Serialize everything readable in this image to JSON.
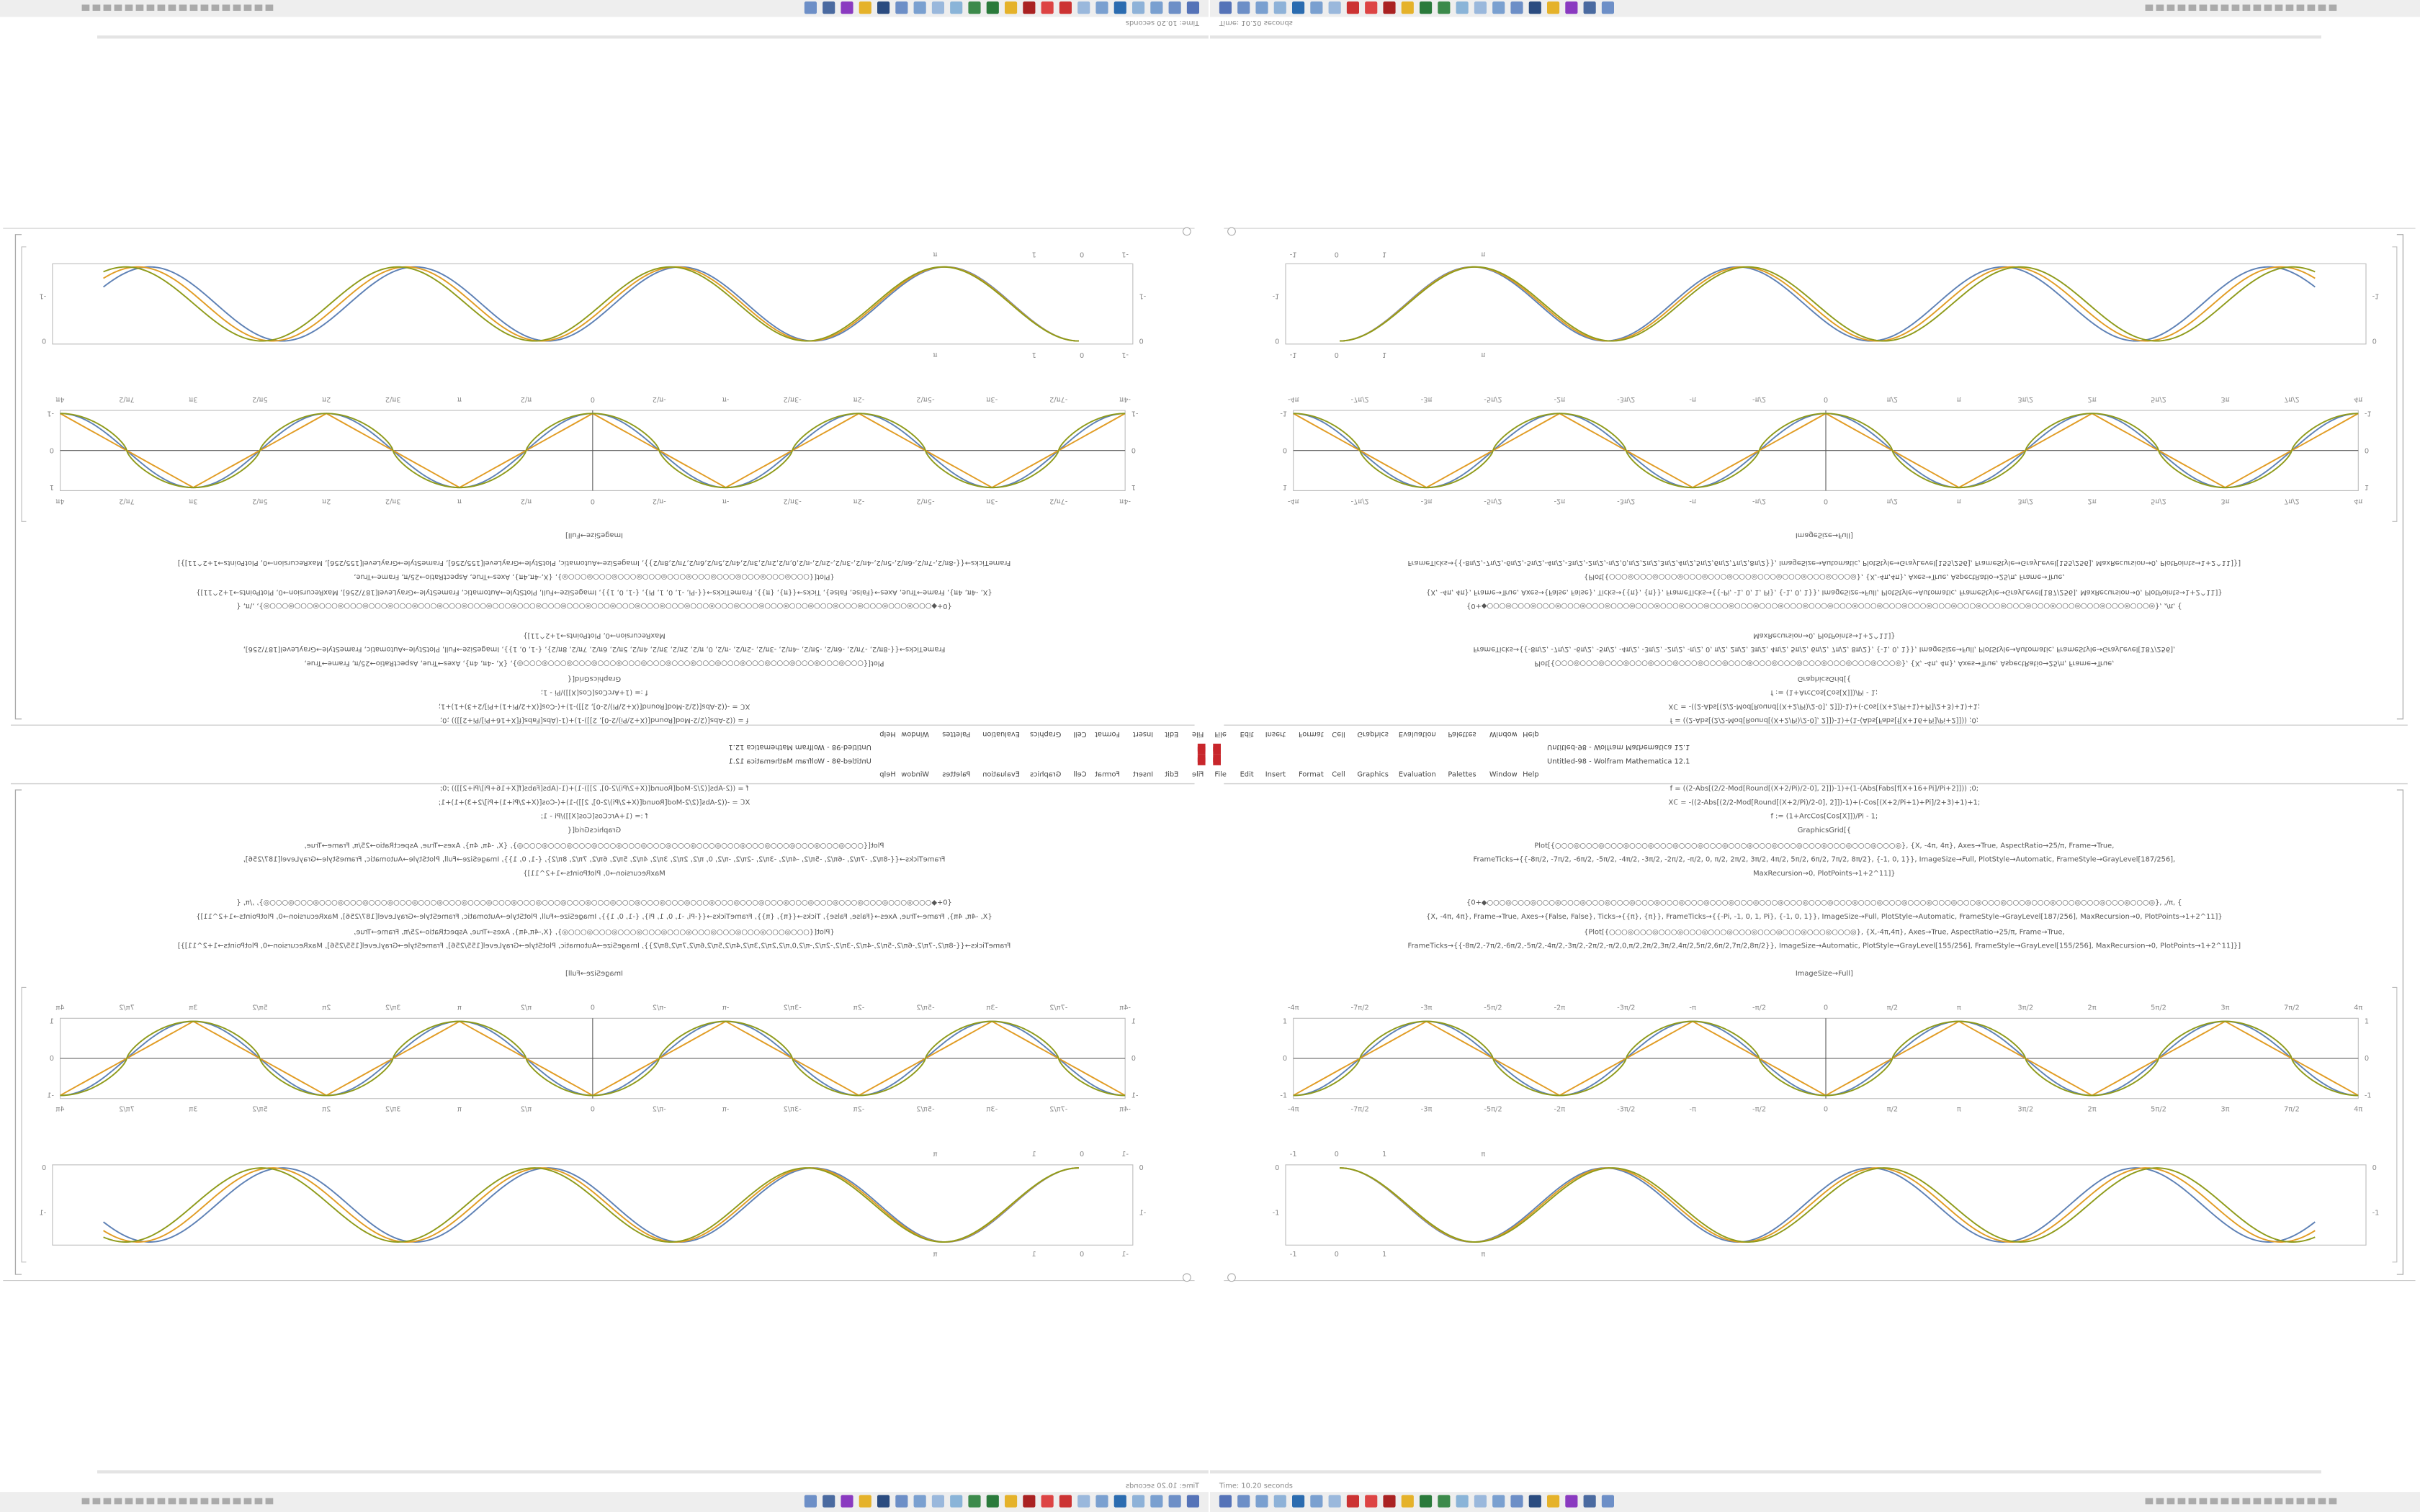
{
  "window_title": "Untitled-98 - Wolfram Mathematica 12.1",
  "menu": [
    "File",
    "Edit",
    "Insert",
    "Format",
    "Cell",
    "Graphics",
    "Evaluation",
    "Palettes",
    "Window",
    "Help"
  ],
  "status": "Time: 10.20 seconds",
  "code_lines": [
    "f = ((2-Abs[(2/2-Mod[Round[(X+2/Pi)/2-0], 2]])-1)+(1-(Abs[Fabs[f[X+16+Pi]/Pi+2]])) ;0;",
    "Xℂ = -((2-Abs[(2/2-Mod[Round[(X+2/Pi)/2-0], 2]])-1)+(-Cos[(X+2/Pi+1)+Pi]/2+3)+1)+1;",
    "f := (1+ArcCos[Cos[X]])/Pi - 1;",
    "GraphicsGrid[{",
    "Plot[{○○○◎○○○◎○○○◎○○○◎○○○◎○○○◎○○○◎○○○◎○○○◎○○○◎○○○◎○○○◎○○○◎○○○◎}, {X, -4π, 4π}, Axes→True, AspectRatio→25/π, Frame→True,",
    "FrameTicks→{{-8π/2, -7π/2, -6π/2, -5π/2, -4π/2, -3π/2, -2π/2, -π/2, 0, π/2, 2π/2, 3π/2, 4π/2, 5π/2, 6π/2, 7π/2, 8π/2}, {-1, 0, 1}}, ImageSize→Full, PlotStyle→Automatic, FrameStyle→GrayLevel[187/256],",
    "MaxRecursion→0, PlotPoints→1+2^11]}",
    "{0+◆○○○◎○○○◎○○○◎○○○◎○○○◎○○○◎○○○◎○○○◎○○○◎○○○◎○○○◎○○○◎○○○◎○○○◎○○○◎○○○◎○○○◎○○○◎○○○◎○○○◎○○○◎○○○◎○○○◎○○○◎○○○◎○○○◎○○○◎}, ,/π, {",
    "{X, -4π, 4π}, Frame→True, Axes→{False, False}, Ticks→{{π}, {π}}, FrameTicks→{{-Pi, -1, 0, 1, Pi}, {-1, 0, 1}}, ImageSize→Full, PlotStyle→Automatic, FrameStyle→GrayLevel[187/256], MaxRecursion→0, PlotPoints→1+2^11]}",
    "{Plot[{○○○◎○○○◎○○○◎○○○◎○○○◎○○○◎○○○◎○○○◎○○○◎○○○◎}, {X,-4π,4π}, Axes→True, AspectRatio→25/π, Frame→True,",
    "FrameTicks→{{-8π/2,-7π/2,-6π/2,-5π/2,-4π/2,-3π/2,-2π/2,-π/2,0,π/2,2π/2,3π/2,4π/2,5π/2,6π/2,7π/2,8π/2}}, ImageSize→Automatic, PlotStyle→GrayLevel[155/256], FrameStyle→GrayLevel[155/256], MaxRecursion→0, PlotPoints→1+2^11]}]",
    "ImageSize→Full]"
  ],
  "plot1": {
    "x_ticks": [
      "-4π",
      "-7π/2",
      "-3π",
      "-5π/2",
      "-2π",
      "-3π/2",
      "-π",
      "-π/2",
      "0",
      "π/2",
      "π",
      "3π/2",
      "2π",
      "5π/2",
      "3π",
      "7π/2",
      "4π"
    ],
    "y_ticks": [
      "1",
      "0",
      "-1"
    ]
  },
  "plot2": {
    "x_ticks": [
      "-1",
      "0",
      "1",
      "π"
    ],
    "y_ticks": [
      "0",
      "-1"
    ]
  }
}
